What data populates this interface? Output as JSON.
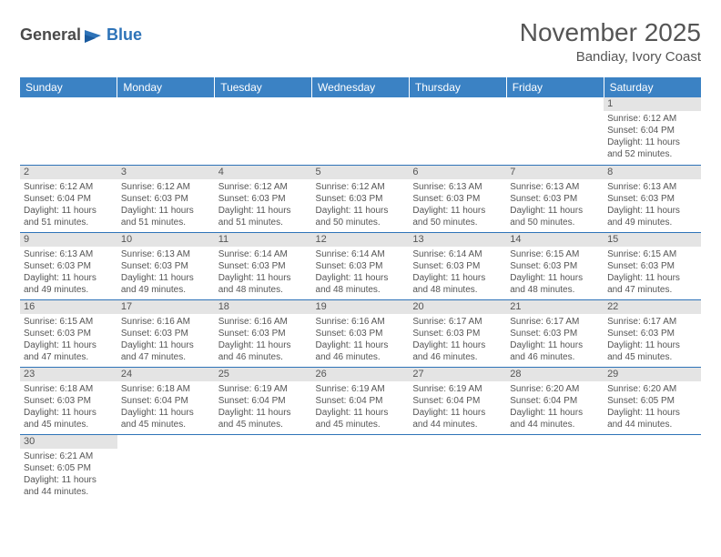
{
  "logo": {
    "text1": "General",
    "text2": "Blue"
  },
  "title": "November 2025",
  "subtitle": "Bandiay, Ivory Coast",
  "colors": {
    "header_bg": "#3b82c4",
    "header_text": "#ffffff",
    "border": "#2e73b8",
    "daynum_bg": "#e4e4e4",
    "text": "#555555",
    "logo_gray": "#4a4a4a",
    "logo_blue": "#2e73b8",
    "background": "#ffffff"
  },
  "weekdays": [
    "Sunday",
    "Monday",
    "Tuesday",
    "Wednesday",
    "Thursday",
    "Friday",
    "Saturday"
  ],
  "weeks": [
    [
      null,
      null,
      null,
      null,
      null,
      null,
      {
        "n": "1",
        "sr": "6:12 AM",
        "ss": "6:04 PM",
        "d1": "11 hours",
        "d2": "52 minutes."
      }
    ],
    [
      {
        "n": "2",
        "sr": "6:12 AM",
        "ss": "6:04 PM",
        "d1": "11 hours",
        "d2": "51 minutes."
      },
      {
        "n": "3",
        "sr": "6:12 AM",
        "ss": "6:03 PM",
        "d1": "11 hours",
        "d2": "51 minutes."
      },
      {
        "n": "4",
        "sr": "6:12 AM",
        "ss": "6:03 PM",
        "d1": "11 hours",
        "d2": "51 minutes."
      },
      {
        "n": "5",
        "sr": "6:12 AM",
        "ss": "6:03 PM",
        "d1": "11 hours",
        "d2": "50 minutes."
      },
      {
        "n": "6",
        "sr": "6:13 AM",
        "ss": "6:03 PM",
        "d1": "11 hours",
        "d2": "50 minutes."
      },
      {
        "n": "7",
        "sr": "6:13 AM",
        "ss": "6:03 PM",
        "d1": "11 hours",
        "d2": "50 minutes."
      },
      {
        "n": "8",
        "sr": "6:13 AM",
        "ss": "6:03 PM",
        "d1": "11 hours",
        "d2": "49 minutes."
      }
    ],
    [
      {
        "n": "9",
        "sr": "6:13 AM",
        "ss": "6:03 PM",
        "d1": "11 hours",
        "d2": "49 minutes."
      },
      {
        "n": "10",
        "sr": "6:13 AM",
        "ss": "6:03 PM",
        "d1": "11 hours",
        "d2": "49 minutes."
      },
      {
        "n": "11",
        "sr": "6:14 AM",
        "ss": "6:03 PM",
        "d1": "11 hours",
        "d2": "48 minutes."
      },
      {
        "n": "12",
        "sr": "6:14 AM",
        "ss": "6:03 PM",
        "d1": "11 hours",
        "d2": "48 minutes."
      },
      {
        "n": "13",
        "sr": "6:14 AM",
        "ss": "6:03 PM",
        "d1": "11 hours",
        "d2": "48 minutes."
      },
      {
        "n": "14",
        "sr": "6:15 AM",
        "ss": "6:03 PM",
        "d1": "11 hours",
        "d2": "48 minutes."
      },
      {
        "n": "15",
        "sr": "6:15 AM",
        "ss": "6:03 PM",
        "d1": "11 hours",
        "d2": "47 minutes."
      }
    ],
    [
      {
        "n": "16",
        "sr": "6:15 AM",
        "ss": "6:03 PM",
        "d1": "11 hours",
        "d2": "47 minutes."
      },
      {
        "n": "17",
        "sr": "6:16 AM",
        "ss": "6:03 PM",
        "d1": "11 hours",
        "d2": "47 minutes."
      },
      {
        "n": "18",
        "sr": "6:16 AM",
        "ss": "6:03 PM",
        "d1": "11 hours",
        "d2": "46 minutes."
      },
      {
        "n": "19",
        "sr": "6:16 AM",
        "ss": "6:03 PM",
        "d1": "11 hours",
        "d2": "46 minutes."
      },
      {
        "n": "20",
        "sr": "6:17 AM",
        "ss": "6:03 PM",
        "d1": "11 hours",
        "d2": "46 minutes."
      },
      {
        "n": "21",
        "sr": "6:17 AM",
        "ss": "6:03 PM",
        "d1": "11 hours",
        "d2": "46 minutes."
      },
      {
        "n": "22",
        "sr": "6:17 AM",
        "ss": "6:03 PM",
        "d1": "11 hours",
        "d2": "45 minutes."
      }
    ],
    [
      {
        "n": "23",
        "sr": "6:18 AM",
        "ss": "6:03 PM",
        "d1": "11 hours",
        "d2": "45 minutes."
      },
      {
        "n": "24",
        "sr": "6:18 AM",
        "ss": "6:04 PM",
        "d1": "11 hours",
        "d2": "45 minutes."
      },
      {
        "n": "25",
        "sr": "6:19 AM",
        "ss": "6:04 PM",
        "d1": "11 hours",
        "d2": "45 minutes."
      },
      {
        "n": "26",
        "sr": "6:19 AM",
        "ss": "6:04 PM",
        "d1": "11 hours",
        "d2": "45 minutes."
      },
      {
        "n": "27",
        "sr": "6:19 AM",
        "ss": "6:04 PM",
        "d1": "11 hours",
        "d2": "44 minutes."
      },
      {
        "n": "28",
        "sr": "6:20 AM",
        "ss": "6:04 PM",
        "d1": "11 hours",
        "d2": "44 minutes."
      },
      {
        "n": "29",
        "sr": "6:20 AM",
        "ss": "6:05 PM",
        "d1": "11 hours",
        "d2": "44 minutes."
      }
    ],
    [
      {
        "n": "30",
        "sr": "6:21 AM",
        "ss": "6:05 PM",
        "d1": "11 hours",
        "d2": "44 minutes."
      },
      null,
      null,
      null,
      null,
      null,
      null
    ]
  ],
  "labels": {
    "sunrise": "Sunrise:",
    "sunset": "Sunset:",
    "daylight": "Daylight:",
    "and": "and"
  }
}
